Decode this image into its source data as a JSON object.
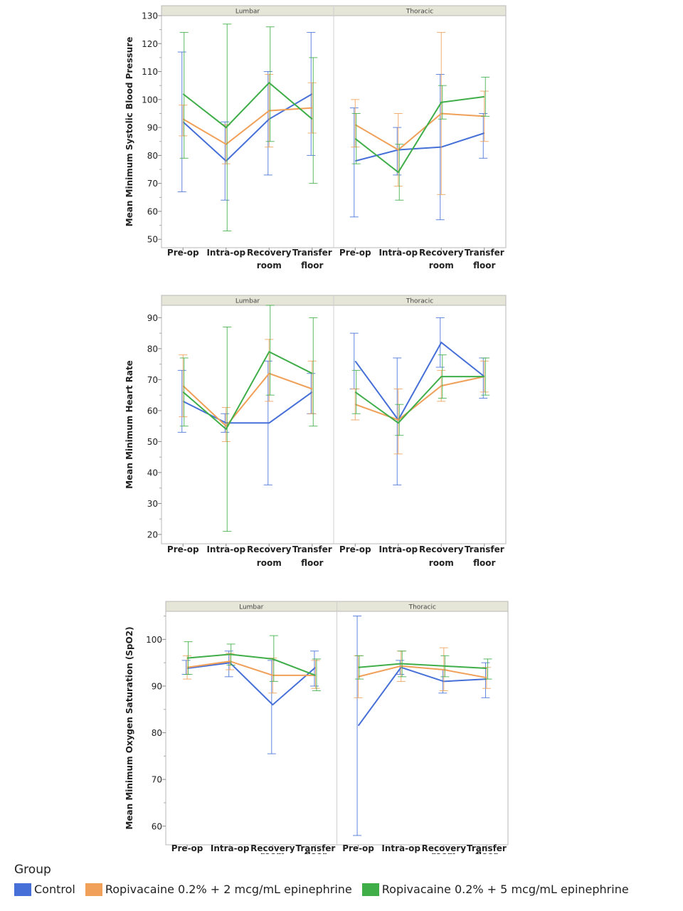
{
  "colors": {
    "control": "#4670d8",
    "ropi2": "#f0a058",
    "ropi5": "#3fae49"
  },
  "legend": {
    "title": "Group",
    "items": [
      {
        "label": "Control",
        "color": "#4670d8"
      },
      {
        "label": "Ropivacaine 0.2% + 2 mcg/mL epinephrine",
        "color": "#f0a058"
      },
      {
        "label": "Ropivacaine 0.2% + 5 mcg/mL epinephrine",
        "color": "#3fae49"
      }
    ]
  },
  "chart_data": [
    {
      "type": "line",
      "ylabel": "Mean Minimum Systolic Blood Pressure",
      "ylim": [
        47,
        130
      ],
      "yticks": [
        50,
        60,
        70,
        80,
        90,
        100,
        110,
        120,
        130
      ],
      "categories": [
        [
          "Pre-op"
        ],
        [
          "Intra-op"
        ],
        [
          "Recovery",
          "room"
        ],
        [
          "Transfer",
          "floor"
        ]
      ],
      "panels": [
        {
          "name": "Lumbar",
          "series": [
            {
              "name": "Control",
              "values": [
                92,
                78,
                93,
                102
              ],
              "err_low": [
                67,
                64,
                73,
                80
              ],
              "err_high": [
                117,
                92,
                110,
                124
              ]
            },
            {
              "name": "Ropivacaine 0.2% + 2 mcg/mL epinephrine",
              "values": [
                93,
                84,
                96,
                97
              ],
              "err_low": [
                87,
                77,
                83,
                88
              ],
              "err_high": [
                98,
                91,
                109,
                106
              ]
            },
            {
              "name": "Ropivacaine 0.2% + 5 mcg/mL epinephrine",
              "values": [
                102,
                90,
                106,
                93
              ],
              "err_low": [
                79,
                53,
                85,
                70
              ],
              "err_high": [
                124,
                127,
                126,
                115
              ]
            }
          ]
        },
        {
          "name": "Thoracic",
          "series": [
            {
              "name": "Control",
              "values": [
                78,
                82,
                83,
                88
              ],
              "err_low": [
                58,
                73,
                57,
                79
              ],
              "err_high": [
                97,
                90,
                109,
                95
              ]
            },
            {
              "name": "Ropivacaine 0.2% + 2 mcg/mL epinephrine",
              "values": [
                91,
                82,
                95,
                94
              ],
              "err_low": [
                83,
                69,
                66,
                85
              ],
              "err_high": [
                100,
                95,
                124,
                103
              ]
            },
            {
              "name": "Ropivacaine 0.2% + 5 mcg/mL epinephrine",
              "values": [
                86,
                74,
                99,
                101
              ],
              "err_low": [
                77,
                64,
                93,
                94
              ],
              "err_high": [
                95,
                84,
                105,
                108
              ]
            }
          ]
        }
      ]
    },
    {
      "type": "line",
      "ylabel": "Mean Minimum Heart Rate",
      "ylim": [
        17,
        94
      ],
      "yticks": [
        20,
        30,
        40,
        50,
        60,
        70,
        80,
        90
      ],
      "categories": [
        [
          "Pre-op"
        ],
        [
          "Intra-op"
        ],
        [
          "Recovery",
          "room"
        ],
        [
          "Transfer",
          "floor"
        ]
      ],
      "panels": [
        {
          "name": "Lumbar",
          "series": [
            {
              "name": "Control",
              "values": [
                63,
                56,
                56,
                66
              ],
              "err_low": [
                53,
                53,
                36,
                59
              ],
              "err_high": [
                73,
                59,
                76,
                72
              ]
            },
            {
              "name": "Ropivacaine 0.2% + 2 mcg/mL epinephrine",
              "values": [
                68,
                55,
                72,
                67
              ],
              "err_low": [
                58,
                50,
                63,
                59
              ],
              "err_high": [
                78,
                61,
                83,
                76
              ]
            },
            {
              "name": "Ropivacaine 0.2% + 5 mcg/mL epinephrine",
              "values": [
                66,
                54,
                79,
                72
              ],
              "err_low": [
                55,
                21,
                65,
                55
              ],
              "err_high": [
                77,
                87,
                94,
                90
              ]
            }
          ]
        },
        {
          "name": "Thoracic",
          "series": [
            {
              "name": "Control",
              "values": [
                76,
                57,
                82,
                71
              ],
              "err_low": [
                67,
                36,
                74,
                64
              ],
              "err_high": [
                85,
                77,
                90,
                77
              ]
            },
            {
              "name": "Ropivacaine 0.2% + 2 mcg/mL epinephrine",
              "values": [
                62,
                57,
                68,
                71
              ],
              "err_low": [
                57,
                46,
                63,
                66
              ],
              "err_high": [
                67,
                67,
                73,
                76
              ]
            },
            {
              "name": "Ropivacaine 0.2% + 5 mcg/mL epinephrine",
              "values": [
                66,
                56,
                71,
                71
              ],
              "err_low": [
                59,
                52,
                64,
                65
              ],
              "err_high": [
                73,
                62,
                78,
                77
              ]
            }
          ]
        }
      ]
    },
    {
      "type": "line",
      "ylabel": "Mean Minimum Oxygen Saturation (SpO2)",
      "ylim": [
        56,
        106
      ],
      "yticks": [
        60,
        70,
        80,
        90,
        100
      ],
      "categories": [
        [
          "Pre-op"
        ],
        [
          "Intra-op"
        ],
        [
          "Recovery",
          "room"
        ],
        [
          "Transfer",
          "floor"
        ]
      ],
      "panels": [
        {
          "name": "Lumbar",
          "series": [
            {
              "name": "Control",
              "values": [
                93.8,
                95,
                86,
                94
              ],
              "err_low": [
                92.5,
                92,
                75.5,
                90
              ],
              "err_high": [
                95.5,
                97.5,
                95.5,
                97.5
              ]
            },
            {
              "name": "Ropivacaine 0.2% + 2 mcg/mL epinephrine",
              "values": [
                94,
                95.3,
                92.3,
                92.3
              ],
              "err_low": [
                91.5,
                93.5,
                88.5,
                89.5
              ],
              "err_high": [
                96.5,
                97,
                96,
                95.5
              ]
            },
            {
              "name": "Ropivacaine 0.2% + 5 mcg/mL epinephrine",
              "values": [
                96,
                96.8,
                95.8,
                92.3
              ],
              "err_low": [
                92.5,
                94.5,
                91,
                89
              ],
              "err_high": [
                99.5,
                99,
                100.8,
                95.8
              ]
            }
          ]
        },
        {
          "name": "Thoracic",
          "series": [
            {
              "name": "Control",
              "values": [
                81.5,
                94,
                91,
                91.5
              ],
              "err_low": [
                58,
                92.5,
                88.5,
                87.5
              ],
              "err_high": [
                105,
                95.5,
                93.5,
                95
              ]
            },
            {
              "name": "Ropivacaine 0.2% + 2 mcg/mL epinephrine",
              "values": [
                92,
                94.3,
                93.5,
                91.8
              ],
              "err_low": [
                87.5,
                91,
                89,
                89.5
              ],
              "err_high": [
                96.5,
                97.5,
                98.2,
                94
              ]
            },
            {
              "name": "Ropivacaine 0.2% + 5 mcg/mL epinephrine",
              "values": [
                94,
                94.8,
                94.3,
                93.8
              ],
              "err_low": [
                91.5,
                92,
                92,
                91.5
              ],
              "err_high": [
                96.5,
                97.5,
                96.5,
                95.8
              ]
            }
          ]
        }
      ]
    }
  ]
}
